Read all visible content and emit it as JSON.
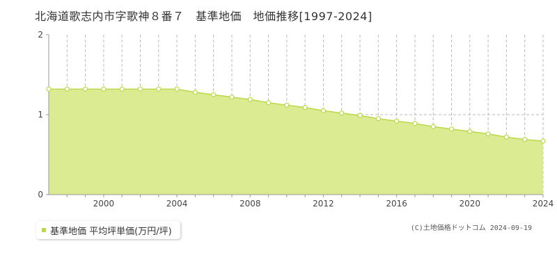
{
  "title": "北海道歌志内市字歌神８番７　基準地価　地価推移[1997-2024]",
  "legend": {
    "label": "基準地価 平均坪単価(万円/坪)"
  },
  "copyright": "(C)土地価格ドットコム 2024-09-19",
  "colors": {
    "fill": "#dbeb91",
    "line": "#b9d94a",
    "point_fill": "#ffffff",
    "grid": "#bbbbbb",
    "axis": "#999999"
  },
  "chart_data": {
    "type": "area",
    "title": "北海道歌志内市字歌神８番７　基準地価　地価推移[1997-2024]",
    "x": [
      1997,
      1998,
      1999,
      2000,
      2001,
      2002,
      2003,
      2004,
      2005,
      2006,
      2007,
      2008,
      2009,
      2010,
      2011,
      2012,
      2013,
      2014,
      2015,
      2016,
      2017,
      2018,
      2019,
      2020,
      2021,
      2022,
      2023,
      2024
    ],
    "series": [
      {
        "name": "基準地価 平均坪単価(万円/坪)",
        "values": [
          1.32,
          1.32,
          1.32,
          1.32,
          1.32,
          1.32,
          1.32,
          1.32,
          1.28,
          1.25,
          1.22,
          1.19,
          1.15,
          1.12,
          1.09,
          1.05,
          1.02,
          0.99,
          0.95,
          0.92,
          0.89,
          0.85,
          0.82,
          0.79,
          0.76,
          0.72,
          0.69,
          0.67
        ]
      }
    ],
    "xlim": [
      1997,
      2024
    ],
    "ylim": [
      0,
      2
    ],
    "xticks": [
      2000,
      2004,
      2008,
      2012,
      2016,
      2020,
      2024
    ],
    "yticks": [
      0,
      1,
      2
    ],
    "grid": "vertical dashed per year, horizontal dashed at 1",
    "legend_position": "bottom-left"
  }
}
